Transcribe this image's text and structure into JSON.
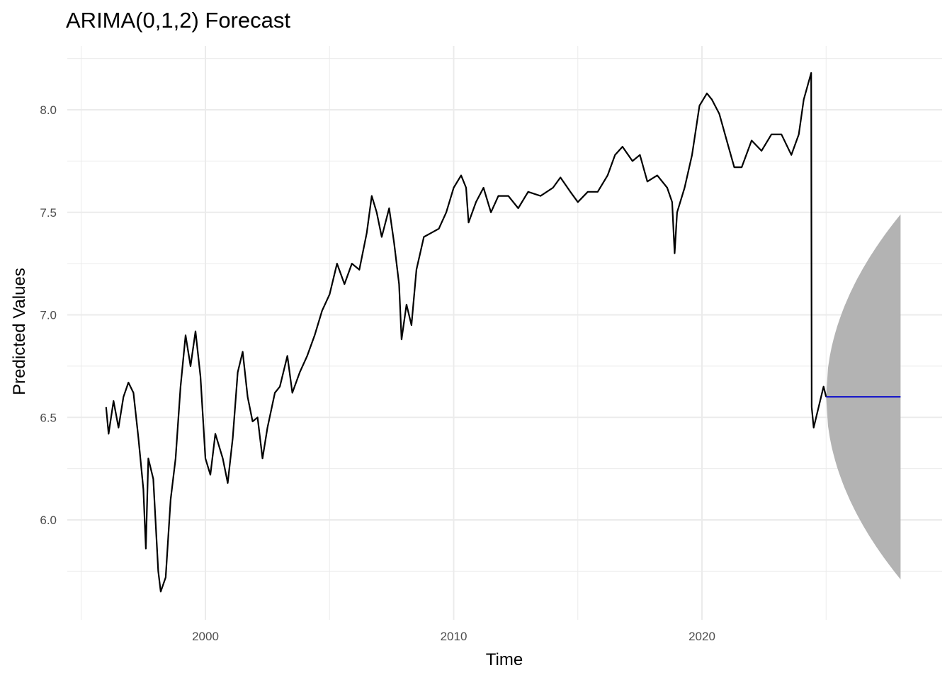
{
  "chart_data": {
    "type": "line",
    "title": "ARIMA(0,1,2) Forecast",
    "xlabel": "Time",
    "ylabel": "Predicted Values",
    "xlim": [
      1995,
      2028.7
    ],
    "ylim": [
      5.6,
      8.3
    ],
    "x_ticks": [
      2000,
      2010,
      2020
    ],
    "x_tick_labels": [
      "2000",
      "2010",
      "2020"
    ],
    "y_ticks": [
      6.0,
      6.5,
      7.0,
      7.5,
      8.0
    ],
    "y_tick_labels": [
      "6.0",
      "6.5",
      "7.0",
      "7.5",
      "8.0"
    ],
    "grid": true,
    "colors": {
      "series": "#000000",
      "forecast": "#0000cc",
      "band": "#b3b3b3",
      "grid": "#ebebeb"
    },
    "series": [
      {
        "name": "observed",
        "points": [
          [
            1996.0,
            6.55
          ],
          [
            1996.1,
            6.42
          ],
          [
            1996.3,
            6.58
          ],
          [
            1996.5,
            6.45
          ],
          [
            1996.7,
            6.6
          ],
          [
            1996.9,
            6.67
          ],
          [
            1997.1,
            6.62
          ],
          [
            1997.3,
            6.4
          ],
          [
            1997.5,
            6.15
          ],
          [
            1997.6,
            5.86
          ],
          [
            1997.7,
            6.3
          ],
          [
            1997.9,
            6.2
          ],
          [
            1998.1,
            5.75
          ],
          [
            1998.2,
            5.65
          ],
          [
            1998.4,
            5.72
          ],
          [
            1998.6,
            6.1
          ],
          [
            1998.8,
            6.3
          ],
          [
            1999.0,
            6.65
          ],
          [
            1999.2,
            6.9
          ],
          [
            1999.4,
            6.75
          ],
          [
            1999.6,
            6.92
          ],
          [
            1999.8,
            6.7
          ],
          [
            2000.0,
            6.3
          ],
          [
            2000.2,
            6.22
          ],
          [
            2000.4,
            6.42
          ],
          [
            2000.7,
            6.3
          ],
          [
            2000.9,
            6.18
          ],
          [
            2001.1,
            6.4
          ],
          [
            2001.3,
            6.72
          ],
          [
            2001.5,
            6.82
          ],
          [
            2001.7,
            6.6
          ],
          [
            2001.9,
            6.48
          ],
          [
            2002.1,
            6.5
          ],
          [
            2002.3,
            6.3
          ],
          [
            2002.5,
            6.45
          ],
          [
            2002.8,
            6.62
          ],
          [
            2003.0,
            6.65
          ],
          [
            2003.3,
            6.8
          ],
          [
            2003.5,
            6.62
          ],
          [
            2003.8,
            6.72
          ],
          [
            2004.1,
            6.8
          ],
          [
            2004.4,
            6.9
          ],
          [
            2004.7,
            7.02
          ],
          [
            2005.0,
            7.1
          ],
          [
            2005.3,
            7.25
          ],
          [
            2005.6,
            7.15
          ],
          [
            2005.9,
            7.25
          ],
          [
            2006.2,
            7.22
          ],
          [
            2006.5,
            7.4
          ],
          [
            2006.7,
            7.58
          ],
          [
            2006.9,
            7.5
          ],
          [
            2007.1,
            7.38
          ],
          [
            2007.4,
            7.52
          ],
          [
            2007.6,
            7.35
          ],
          [
            2007.8,
            7.15
          ],
          [
            2007.9,
            6.88
          ],
          [
            2008.1,
            7.05
          ],
          [
            2008.3,
            6.95
          ],
          [
            2008.5,
            7.22
          ],
          [
            2008.8,
            7.38
          ],
          [
            2009.1,
            7.4
          ],
          [
            2009.4,
            7.42
          ],
          [
            2009.7,
            7.5
          ],
          [
            2010.0,
            7.62
          ],
          [
            2010.3,
            7.68
          ],
          [
            2010.5,
            7.62
          ],
          [
            2010.6,
            7.45
          ],
          [
            2010.9,
            7.55
          ],
          [
            2011.2,
            7.62
          ],
          [
            2011.5,
            7.5
          ],
          [
            2011.8,
            7.58
          ],
          [
            2012.2,
            7.58
          ],
          [
            2012.6,
            7.52
          ],
          [
            2013.0,
            7.6
          ],
          [
            2013.5,
            7.58
          ],
          [
            2014.0,
            7.62
          ],
          [
            2014.3,
            7.67
          ],
          [
            2014.7,
            7.6
          ],
          [
            2015.0,
            7.55
          ],
          [
            2015.4,
            7.6
          ],
          [
            2015.8,
            7.6
          ],
          [
            2016.2,
            7.68
          ],
          [
            2016.5,
            7.78
          ],
          [
            2016.8,
            7.82
          ],
          [
            2017.2,
            7.75
          ],
          [
            2017.5,
            7.78
          ],
          [
            2017.8,
            7.65
          ],
          [
            2018.2,
            7.68
          ],
          [
            2018.6,
            7.62
          ],
          [
            2018.8,
            7.55
          ],
          [
            2018.9,
            7.3
          ],
          [
            2019.0,
            7.5
          ],
          [
            2019.3,
            7.62
          ],
          [
            2019.6,
            7.78
          ],
          [
            2019.9,
            8.02
          ],
          [
            2020.2,
            8.08
          ],
          [
            2020.4,
            8.05
          ],
          [
            2020.7,
            7.98
          ],
          [
            2021.0,
            7.85
          ],
          [
            2021.3,
            7.72
          ],
          [
            2021.6,
            7.72
          ],
          [
            2022.0,
            7.85
          ],
          [
            2022.4,
            7.8
          ],
          [
            2022.8,
            7.88
          ],
          [
            2023.2,
            7.88
          ],
          [
            2023.6,
            7.78
          ],
          [
            2023.9,
            7.88
          ],
          [
            2024.1,
            8.05
          ],
          [
            2024.4,
            8.18
          ],
          [
            2024.42,
            6.55
          ],
          [
            2024.5,
            6.45
          ],
          [
            2024.7,
            6.55
          ],
          [
            2024.9,
            6.65
          ],
          [
            2025.0,
            6.6
          ]
        ]
      },
      {
        "name": "forecast",
        "points": [
          [
            2025.0,
            6.6
          ],
          [
            2028.0,
            6.6
          ]
        ]
      }
    ],
    "interval": {
      "x_start": 2025.0,
      "x_end": 2028.0,
      "center": 6.6,
      "upper_end": 7.49,
      "lower_end": 5.71
    }
  }
}
